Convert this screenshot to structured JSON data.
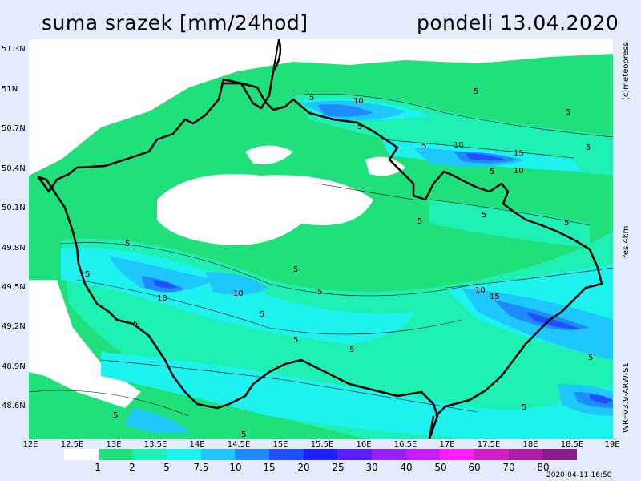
{
  "header": {
    "title_left": "suma srazek [mm/24hod]",
    "title_right": "pondeli 13.04.2020"
  },
  "axes": {
    "y_labels": [
      "51.3N",
      "51N",
      "50.7N",
      "50.4N",
      "50.1N",
      "49.8N",
      "49.5N",
      "49.2N",
      "48.9N",
      "48.6N"
    ],
    "x_labels": [
      "12E",
      "12.5E",
      "13E",
      "13.5E",
      "14E",
      "14.5E",
      "15E",
      "15.5E",
      "16E",
      "16.5E",
      "17E",
      "17.5E",
      "18E",
      "18.5E",
      "19E"
    ]
  },
  "side_labels": {
    "copyright": "(c)meteopress",
    "resolution": "res.4km",
    "model": "WRFV3.9-ARW-S1"
  },
  "legend": {
    "labels": [
      "1",
      "2",
      "5",
      "7.5",
      "10",
      "15",
      "20",
      "25",
      "30",
      "40",
      "50",
      "60",
      "70",
      "80"
    ],
    "colors": [
      "#ffffff",
      "#1fe07a",
      "#1ef0b4",
      "#1ef2ee",
      "#1ec8ff",
      "#1e8cff",
      "#1e50ff",
      "#1e1eff",
      "#5a1eff",
      "#961eff",
      "#c81eff",
      "#ff1eff",
      "#d21ec8",
      "#aa1eaa",
      "#8c1e8c"
    ]
  },
  "contour_labels": [
    "5",
    "10",
    "15"
  ],
  "timestamp": "2020-04-11-16:50"
}
